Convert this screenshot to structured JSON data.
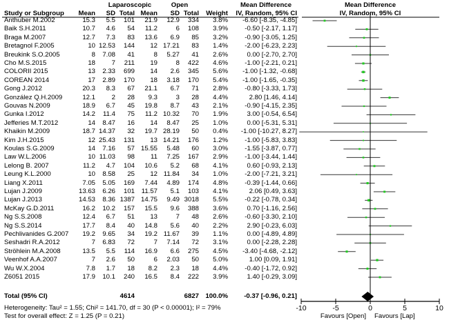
{
  "chart_data": {
    "type": "forest",
    "group_headers": {
      "lap": "Laparoscopic",
      "open": "Open",
      "md_left": "Mean Difference",
      "md_right": "Mean Difference"
    },
    "columns": {
      "study": "Study or Subgroup",
      "mean": "Mean",
      "sd": "SD",
      "total": "Total",
      "weight": "Weight",
      "ci": "IV, Random, 95% CI",
      "ci_right": "IV, Random, 95% CI"
    },
    "studies": [
      {
        "name": "Anthuber M.2002",
        "lm": "15.3",
        "lsd": "5.5",
        "ln": "101",
        "om": "21.9",
        "osd": "12.9",
        "on": "334",
        "w": "3.8%",
        "ci": "-6.60 [-8.35, -4.85]",
        "md": -6.6,
        "lo": -8.35,
        "hi": -4.85,
        "wt": 3.8
      },
      {
        "name": "Baik S.H.2011",
        "lm": "10.7",
        "lsd": "4.6",
        "ln": "54",
        "om": "11.2",
        "osd": "6",
        "on": "108",
        "w": "3.9%",
        "ci": "-0.50 [-2.17, 1.17]",
        "md": -0.5,
        "lo": -2.17,
        "hi": 1.17,
        "wt": 3.9
      },
      {
        "name": "Braga M.2007",
        "lm": "12.7",
        "lsd": "7.3",
        "ln": "83",
        "om": "13.6",
        "osd": "6.9",
        "on": "85",
        "w": "3.2%",
        "ci": "-0.90 [-3.05, 1.25]",
        "md": -0.9,
        "lo": -3.05,
        "hi": 1.25,
        "wt": 3.2
      },
      {
        "name": "Bretagnol F.2005",
        "lm": "10",
        "lsd": "12.53",
        "ln": "144",
        "om": "12",
        "osd": "17.21",
        "on": "83",
        "w": "1.4%",
        "ci": "-2.00 [-6.23, 2.23]",
        "md": -2.0,
        "lo": -6.23,
        "hi": 2.23,
        "wt": 1.4
      },
      {
        "name": "Breukink S.O.2005",
        "lm": "8",
        "lsd": "7.08",
        "ln": "41",
        "om": "8",
        "osd": "5.27",
        "on": "41",
        "w": "2.6%",
        "ci": "0.00 [-2.70, 2.70]",
        "md": 0,
        "lo": -2.7,
        "hi": 2.7,
        "wt": 2.6
      },
      {
        "name": "Cho M.S.2015",
        "lm": "18",
        "lsd": "7",
        "ln": "211",
        "om": "19",
        "osd": "8",
        "on": "422",
        "w": "4.6%",
        "ci": "-1.00 [-2.21, 0.21]",
        "md": -1,
        "lo": -2.21,
        "hi": 0.21,
        "wt": 4.6
      },
      {
        "name": "COLORII 2015",
        "lm": "13",
        "lsd": "2.33",
        "ln": "699",
        "om": "14",
        "osd": "2.6",
        "on": "345",
        "w": "5.6%",
        "ci": "-1.00 [-1.32, -0.68]",
        "md": -1,
        "lo": -1.32,
        "hi": -0.68,
        "wt": 5.6
      },
      {
        "name": "COREAN 2014",
        "lm": "17",
        "lsd": "2.89",
        "ln": "170",
        "om": "18",
        "osd": "3.18",
        "on": "170",
        "w": "5.4%",
        "ci": "-1.00 [-1.65, -0.35]",
        "md": -1,
        "lo": -1.65,
        "hi": -0.35,
        "wt": 5.4
      },
      {
        "name": "Gong J.2012",
        "lm": "20.3",
        "lsd": "8.3",
        "ln": "67",
        "om": "21.1",
        "osd": "6.7",
        "on": "71",
        "w": "2.8%",
        "ci": "-0.80 [-3.33, 1.73]",
        "md": -0.8,
        "lo": -3.33,
        "hi": 1.73,
        "wt": 2.8
      },
      {
        "name": "González Q.H.2009",
        "lm": "12.1",
        "lsd": "2",
        "ln": "28",
        "om": "9.3",
        "osd": "3",
        "on": "28",
        "w": "4.4%",
        "ci": "2.80 [1.46, 4.14]",
        "md": 2.8,
        "lo": 1.46,
        "hi": 4.14,
        "wt": 4.4
      },
      {
        "name": "Gouvas N.2009",
        "lm": "18.9",
        "lsd": "6.7",
        "ln": "45",
        "om": "19.8",
        "osd": "8.7",
        "on": "43",
        "w": "2.1%",
        "ci": "-0.90 [-4.15, 2.35]",
        "md": -0.9,
        "lo": -4.15,
        "hi": 2.35,
        "wt": 2.1
      },
      {
        "name": "Gunka I.2012",
        "lm": "14.2",
        "lsd": "11.4",
        "ln": "75",
        "om": "11.2",
        "osd": "10.32",
        "on": "70",
        "w": "1.9%",
        "ci": "3.00 [-0.54, 6.54]",
        "md": 3,
        "lo": -0.54,
        "hi": 6.54,
        "wt": 1.9
      },
      {
        "name": "Jefferies M.T.2012",
        "lm": "14",
        "lsd": "8.47",
        "ln": "16",
        "om": "14",
        "osd": "8.47",
        "on": "25",
        "w": "1.0%",
        "ci": "0.00 [-5.31, 5.31]",
        "md": 0,
        "lo": -5.31,
        "hi": 5.31,
        "wt": 1.0
      },
      {
        "name": "Khaikin M.2009",
        "lm": "18.7",
        "lsd": "14.37",
        "ln": "32",
        "om": "19.7",
        "osd": "28.19",
        "on": "50",
        "w": "0.4%",
        "ci": "-1.00 [-10.27, 8.27]",
        "md": -1,
        "lo": -10.27,
        "hi": 8.27,
        "wt": 0.4
      },
      {
        "name": "Kim J.H.2015",
        "lm": "12",
        "lsd": "25.43",
        "ln": "131",
        "om": "13",
        "osd": "14.21",
        "on": "176",
        "w": "1.2%",
        "ci": "-1.00 [-5.83, 3.83]",
        "md": -1,
        "lo": -5.83,
        "hi": 3.83,
        "wt": 1.2
      },
      {
        "name": "Koulas S.G.2009",
        "lm": "14",
        "lsd": "7.16",
        "ln": "57",
        "om": "15.55",
        "osd": "5.48",
        "on": "60",
        "w": "3.0%",
        "ci": "-1.55 [-3.87, 0.77]",
        "md": -1.55,
        "lo": -3.87,
        "hi": 0.77,
        "wt": 3.0
      },
      {
        "name": "Law W.L.2006",
        "lm": "10",
        "lsd": "11.03",
        "ln": "98",
        "om": "11",
        "osd": "7.25",
        "on": "167",
        "w": "2.9%",
        "ci": "-1.00 [-3.44, 1.44]",
        "md": -1,
        "lo": -3.44,
        "hi": 1.44,
        "wt": 2.9
      },
      {
        "name": "Lelong B. 2007",
        "lm": "11.2",
        "lsd": "4.7",
        "ln": "104",
        "om": "10.6",
        "osd": "5.2",
        "on": "68",
        "w": "4.1%",
        "ci": "0.60 [-0.93, 2.13]",
        "md": 0.6,
        "lo": -0.93,
        "hi": 2.13,
        "wt": 4.1
      },
      {
        "name": "Leung K.L.2000",
        "lm": "10",
        "lsd": "8.58",
        "ln": "25",
        "om": "12",
        "osd": "11.84",
        "on": "34",
        "w": "1.0%",
        "ci": "-2.00 [-7.21, 3.21]",
        "md": -2,
        "lo": -7.21,
        "hi": 3.21,
        "wt": 1.0
      },
      {
        "name": "Liang X.2011",
        "lm": "7.05",
        "lsd": "5.05",
        "ln": "169",
        "om": "7.44",
        "osd": "4.89",
        "on": "174",
        "w": "4.8%",
        "ci": "-0.39 [-1.44, 0.66]",
        "md": -0.39,
        "lo": -1.44,
        "hi": 0.66,
        "wt": 4.8
      },
      {
        "name": "Lujan J.2009",
        "lm": "13.63",
        "lsd": "6.26",
        "ln": "101",
        "om": "11.57",
        "osd": "5.1",
        "on": "103",
        "w": "4.1%",
        "ci": "2.06 [0.49, 3.63]",
        "md": 2.06,
        "lo": 0.49,
        "hi": 3.63,
        "wt": 4.1
      },
      {
        "name": "Lujan J.2013",
        "lm": "14.53",
        "lsd": "8.36",
        "ln": "1387",
        "om": "14.75",
        "osd": "9.49",
        "on": "3018",
        "w": "5.5%",
        "ci": "-0.22 [-0.78, 0.34]",
        "md": -0.22,
        "lo": -0.78,
        "hi": 0.34,
        "wt": 5.5
      },
      {
        "name": "McKay G.D.2011",
        "lm": "16.2",
        "lsd": "10.2",
        "ln": "157",
        "om": "15.5",
        "osd": "9.6",
        "on": "388",
        "w": "3.6%",
        "ci": "0.70 [-1.16, 2.56]",
        "md": 0.7,
        "lo": -1.16,
        "hi": 2.56,
        "wt": 3.6
      },
      {
        "name": "Ng S.S.2008",
        "lm": "12.4",
        "lsd": "6.7",
        "ln": "51",
        "om": "13",
        "osd": "7",
        "on": "48",
        "w": "2.6%",
        "ci": "-0.60 [-3.30, 2.10]",
        "md": -0.6,
        "lo": -3.3,
        "hi": 2.1,
        "wt": 2.6
      },
      {
        "name": "Ng S.S.2014",
        "lm": "17.7",
        "lsd": "8.4",
        "ln": "40",
        "om": "14.8",
        "osd": "5.6",
        "on": "40",
        "w": "2.2%",
        "ci": "2.90 [-0.23, 6.03]",
        "md": 2.9,
        "lo": -0.23,
        "hi": 6.03,
        "wt": 2.2
      },
      {
        "name": "Pechlivanides G.2007",
        "lm": "19.2",
        "lsd": "9.65",
        "ln": "34",
        "om": "19.2",
        "osd": "11.67",
        "on": "39",
        "w": "1.1%",
        "ci": "0.00 [-4.89, 4.89]",
        "md": 0,
        "lo": -4.89,
        "hi": 4.89,
        "wt": 1.1
      },
      {
        "name": "Seshadri R.A.2012",
        "lm": "7",
        "lsd": "6.83",
        "ln": "72",
        "om": "7",
        "osd": "7.14",
        "on": "72",
        "w": "3.1%",
        "ci": "0.00 [-2.28, 2.28]",
        "md": 0,
        "lo": -2.28,
        "hi": 2.28,
        "wt": 3.1
      },
      {
        "name": "Ströhlein M.A.2008",
        "lm": "13.5",
        "lsd": "5.5",
        "ln": "114",
        "om": "16.9",
        "osd": "6.6",
        "on": "275",
        "w": "4.5%",
        "ci": "-3.40 [-4.68, -2.12]",
        "md": -3.4,
        "lo": -4.68,
        "hi": -2.12,
        "wt": 4.5
      },
      {
        "name": "Veenhof A.A.2007",
        "lm": "7",
        "lsd": "2.6",
        "ln": "50",
        "om": "6",
        "osd": "2.03",
        "on": "50",
        "w": "5.0%",
        "ci": "1.00 [0.09, 1.91]",
        "md": 1,
        "lo": 0.09,
        "hi": 1.91,
        "wt": 5.0
      },
      {
        "name": "Wu W.X.2004",
        "lm": "7.8",
        "lsd": "1.7",
        "ln": "18",
        "om": "8.2",
        "osd": "2.3",
        "on": "18",
        "w": "4.4%",
        "ci": "-0.40 [-1.72, 0.92]",
        "md": -0.4,
        "lo": -1.72,
        "hi": 0.92,
        "wt": 4.4
      },
      {
        "name": "Z6051 2015",
        "lm": "17.9",
        "lsd": "10.1",
        "ln": "240",
        "om": "16.5",
        "osd": "8.4",
        "on": "222",
        "w": "3.9%",
        "ci": "1.40 [-0.29, 3.09]",
        "md": 1.4,
        "lo": -0.29,
        "hi": 3.09,
        "wt": 3.9
      }
    ],
    "total": {
      "label": "Total (95% CI)",
      "ln": "4614",
      "on": "6827",
      "w": "100.0%",
      "ci": "-0.37 [-0.96, 0.21]",
      "md": -0.37,
      "lo": -0.96,
      "hi": 0.21
    },
    "heterogeneity": "Heterogeneity: Tau² = 1.55; Chi² = 141.70, df = 30 (P < 0.00001); I² = 79%",
    "overall": "Test for overall effect: Z = 1.25 (P = 0.21)",
    "xlim": [
      -10,
      10
    ],
    "xticks": [
      -10,
      -5,
      0,
      5,
      10
    ],
    "xlabel_left": "Favours [Open]",
    "xlabel_right": "Favours [Lap]",
    "marker_color": "#22cc22"
  }
}
